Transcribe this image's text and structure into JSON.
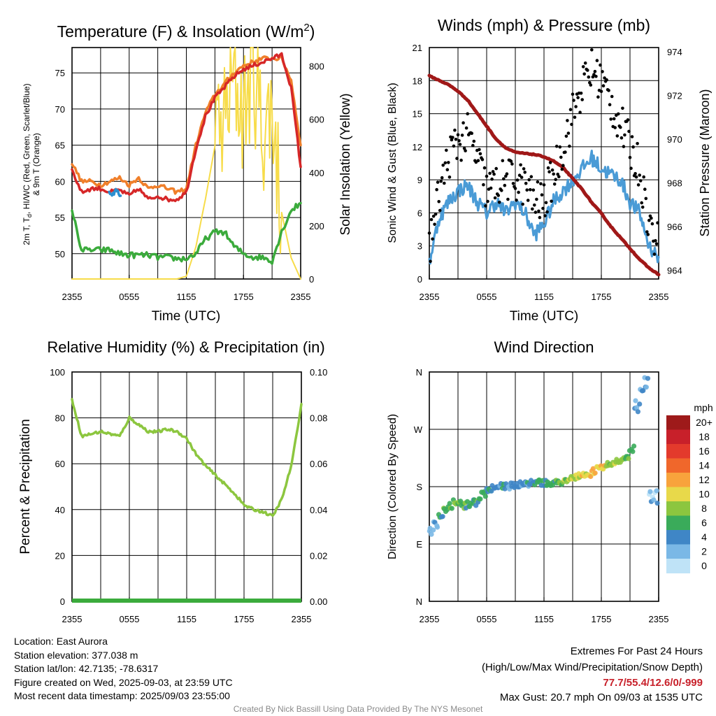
{
  "x_ticks": [
    "2355",
    "0555",
    "1155",
    "1755",
    "2355"
  ],
  "colors": {
    "temp": "#d62728",
    "heat_index": "#2b8fd0",
    "dewpoint": "#3bab3c",
    "temp9m": "#f07f2a",
    "solar": "#f7dc4a",
    "wind": "#4a9bd6",
    "gust": "#000000",
    "pressure": "#a01818",
    "rh": "#8cc63f",
    "precip": "#3bab3c"
  },
  "panels": {
    "temp": {
      "title_main": "Temperature (F) & Insolation (W/m",
      "title_sup": "2",
      "title_end": ")",
      "ylabel_line1": "2m T, T",
      "ylabel_sub": "d",
      "ylabel_line1_end": ", HI/WC (Red, Green, Scarlet/Blue)",
      "ylabel_line2": "& 9m T (Orange)",
      "ylabel_right": "Solar Insolation (Yellow)",
      "xlabel": "Time (UTC)",
      "y_ticks": [
        "75",
        "70",
        "65",
        "60",
        "55",
        "50"
      ],
      "y2_ticks": [
        "800",
        "600",
        "400",
        "200",
        "0"
      ]
    },
    "wind": {
      "title": "Winds (mph) & Pressure (mb)",
      "ylabel": "Sonic Wind & Gust (Blue, Black)",
      "ylabel_right": "Station Pressure (Maroon)",
      "xlabel": "Time (UTC)",
      "y_ticks": [
        "21",
        "18",
        "15",
        "12",
        "9",
        "6",
        "3",
        "0"
      ],
      "y2_ticks": [
        "974",
        "972",
        "970",
        "968",
        "966",
        "964"
      ]
    },
    "rh": {
      "title": "Relative Humidity (%) & Precipitation (in)",
      "ylabel": "Percent & Precipitation",
      "y_ticks": [
        "100",
        "80",
        "60",
        "40",
        "20",
        "0"
      ],
      "y2_ticks": [
        "0.10",
        "0.08",
        "0.06",
        "0.04",
        "0.02",
        "0.00"
      ]
    },
    "dir": {
      "title": "Wind Direction",
      "ylabel": "Direction (Colored By Speed)",
      "y_ticks": [
        "N",
        "W",
        "S",
        "E",
        "N"
      ],
      "legend_title": "mph",
      "legend_labels": [
        "20+",
        "18",
        "16",
        "14",
        "12",
        "10",
        "8",
        "6",
        "4",
        "2",
        "0"
      ],
      "legend_colors": [
        "#9e1a1a",
        "#c8202a",
        "#e33a2c",
        "#f0672b",
        "#f8a33c",
        "#e8d94a",
        "#8cc63f",
        "#3aab5a",
        "#3f86c6",
        "#7ab8e6",
        "#bfe3f7"
      ]
    }
  },
  "chart_data": [
    {
      "type": "line",
      "title": "Temperature (F) & Insolation (W/m2)",
      "xlabel": "Time (UTC)",
      "ylabel": "2m T, Td, HI/WC (Red, Green, Scarlet/Blue) & 9m T (Orange)",
      "ylabel_right": "Solar Insolation (Yellow)",
      "x": [
        0,
        1,
        2,
        3,
        4,
        5,
        6,
        7,
        8,
        9,
        10,
        11,
        12,
        13,
        14,
        15,
        16,
        17,
        18,
        19,
        20,
        21,
        22,
        23,
        24
      ],
      "ylim": [
        46.5,
        78.5
      ],
      "y2lim": [
        0,
        870
      ],
      "series": [
        {
          "name": "2m T",
          "values": [
            61.5,
            58.5,
            59,
            59,
            58.5,
            58.8,
            58,
            59,
            57.5,
            58,
            57.5,
            57.5,
            58.5,
            64.5,
            69,
            71.5,
            73,
            74.5,
            75.5,
            76,
            76.5,
            77,
            77.5,
            73,
            62
          ]
        },
        {
          "name": "9m T",
          "values": [
            62.5,
            60,
            60,
            59.5,
            60,
            60.5,
            59.5,
            60.5,
            59,
            59.5,
            59,
            58.5,
            59,
            65,
            69.5,
            72,
            73.5,
            75,
            76,
            76.5,
            77,
            77,
            77,
            74,
            65
          ]
        },
        {
          "name": "Td",
          "values": [
            56,
            50.5,
            50.5,
            50.5,
            50.5,
            50,
            49.8,
            49.8,
            49.8,
            49.5,
            49.5,
            49.3,
            49.3,
            50,
            52,
            53,
            53,
            51,
            50,
            49.5,
            49.5,
            49,
            53,
            56,
            57
          ]
        },
        {
          "name": "HI/WC",
          "values": [
            null,
            null,
            null,
            null,
            58.5,
            58,
            null,
            null,
            null,
            null,
            null,
            null,
            null,
            null,
            null,
            null,
            null,
            null,
            null,
            null,
            null,
            null,
            null,
            null,
            null
          ]
        },
        {
          "name": "Solar",
          "values": [
            0,
            0,
            0,
            0,
            0,
            0,
            0,
            0,
            0,
            0,
            0,
            0,
            10,
            120,
            300,
            500,
            600,
            750,
            620,
            800,
            550,
            650,
            250,
            80,
            0
          ]
        }
      ]
    },
    {
      "type": "line",
      "title": "Winds (mph) & Pressure (mb)",
      "xlabel": "Time (UTC)",
      "ylabel": "Sonic Wind & Gust (Blue, Black)",
      "ylabel_right": "Station Pressure (Maroon)",
      "x": [
        0,
        1,
        2,
        3,
        4,
        5,
        6,
        7,
        8,
        9,
        10,
        11,
        12,
        13,
        14,
        15,
        16,
        17,
        18,
        19,
        20,
        21,
        22,
        23,
        24
      ],
      "ylim": [
        0,
        21
      ],
      "y2lim": [
        963.6,
        974.2
      ],
      "series": [
        {
          "name": "Sonic Wind",
          "values": [
            1.5,
            5.5,
            7,
            8,
            8.5,
            7,
            6,
            7,
            6,
            7,
            6,
            4,
            5,
            7,
            8,
            9,
            10,
            11,
            10,
            9.5,
            9,
            7,
            6,
            3,
            2
          ]
        },
        {
          "name": "Gust",
          "values": [
            3,
            7.5,
            11,
            12.5,
            13,
            11,
            8,
            8.5,
            9,
            9,
            8.5,
            7,
            7,
            9.5,
            12,
            15,
            17.5,
            19,
            18,
            16,
            14,
            12,
            10,
            5,
            3
          ]
        },
        {
          "name": "Station Pressure",
          "values": [
            972.9,
            972.7,
            972.5,
            972.2,
            971.8,
            971.2,
            970.6,
            970,
            969.6,
            969.4,
            969.35,
            969.3,
            969.2,
            969,
            968.7,
            968.2,
            967.7,
            967.1,
            966.6,
            966,
            965.5,
            965,
            964.5,
            964.1,
            963.8
          ]
        }
      ]
    },
    {
      "type": "line",
      "title": "Relative Humidity (%) & Precipitation (in)",
      "ylabel": "Percent & Precipitation",
      "x": [
        0,
        1,
        2,
        3,
        4,
        5,
        6,
        7,
        8,
        9,
        10,
        11,
        12,
        13,
        14,
        15,
        16,
        17,
        18,
        19,
        20,
        21,
        22,
        23,
        24
      ],
      "ylim": [
        0,
        100
      ],
      "y2lim": [
        0,
        0.1
      ],
      "series": [
        {
          "name": "RH",
          "values": [
            88,
            72,
            73,
            74,
            73,
            72,
            80,
            77,
            74,
            74,
            75,
            74,
            71,
            64,
            59,
            55,
            51,
            47,
            42,
            40,
            39,
            37,
            45,
            60,
            86
          ]
        },
        {
          "name": "Precipitation",
          "values": [
            0,
            0,
            0,
            0,
            0,
            0,
            0,
            0,
            0,
            0,
            0,
            0,
            0,
            0,
            0,
            0,
            0,
            0,
            0,
            0,
            0,
            0,
            0,
            0,
            0
          ]
        }
      ]
    },
    {
      "type": "scatter",
      "title": "Wind Direction",
      "ylabel": "Direction (Colored By Speed)",
      "ylim": [
        0,
        360
      ],
      "y_labels": [
        "N",
        "E",
        "S",
        "W",
        "N"
      ],
      "x": [
        0,
        0.5,
        1,
        1.5,
        2,
        2.5,
        3,
        3.5,
        4,
        4.5,
        5,
        5.5,
        6,
        6.5,
        7,
        7.5,
        8,
        8.5,
        9,
        9.5,
        10,
        10.5,
        11,
        11.5,
        12,
        12.5,
        13,
        13.5,
        14,
        14.5,
        15,
        15.5,
        16,
        16.5,
        17,
        17.5,
        18,
        18.5,
        19,
        19.5,
        20,
        20.5,
        21,
        21.5,
        22,
        22.5,
        23,
        23.5
      ],
      "direction": [
        110,
        120,
        135,
        145,
        150,
        155,
        155,
        150,
        152,
        155,
        160,
        168,
        175,
        178,
        178,
        180,
        181,
        182,
        182,
        183,
        184,
        185,
        185,
        186,
        186,
        186,
        188,
        188,
        190,
        192,
        194,
        196,
        198,
        200,
        205,
        208,
        210,
        213,
        216,
        218,
        222,
        228,
        240,
        300,
        320,
        340,
        160,
        165
      ],
      "speed": [
        2,
        3,
        4,
        6,
        7,
        7,
        6,
        6,
        5,
        5,
        6,
        6,
        5,
        4,
        4,
        5,
        4,
        4,
        4,
        4,
        4,
        4,
        5,
        5,
        5,
        6,
        6,
        7,
        8,
        8,
        8,
        9,
        10,
        11,
        11,
        10,
        10,
        8,
        9,
        8,
        8,
        7,
        6,
        3,
        3,
        3,
        2,
        2
      ]
    }
  ],
  "info": {
    "location": "Location: East Aurora",
    "elevation": "Station elevation: 377.038 m",
    "latlon": "Station lat/lon: 42.7135; -78.6317",
    "created": "Figure created on Wed, 2025-09-03, at 23:59 UTC",
    "recent": "Most recent data timestamp: 2025/09/03 23:55:00"
  },
  "extremes": {
    "title": "Extremes For Past 24 Hours",
    "subtitle": "(High/Low/Max Wind/Precipitation/Snow Depth)",
    "values": "77.7/55.4/12.6/0/-999",
    "gust": "Max Gust: 20.7 mph On 09/03 at 1535 UTC"
  },
  "credit": "Created By Nick Bassill Using Data Provided By The NYS Mesonet"
}
